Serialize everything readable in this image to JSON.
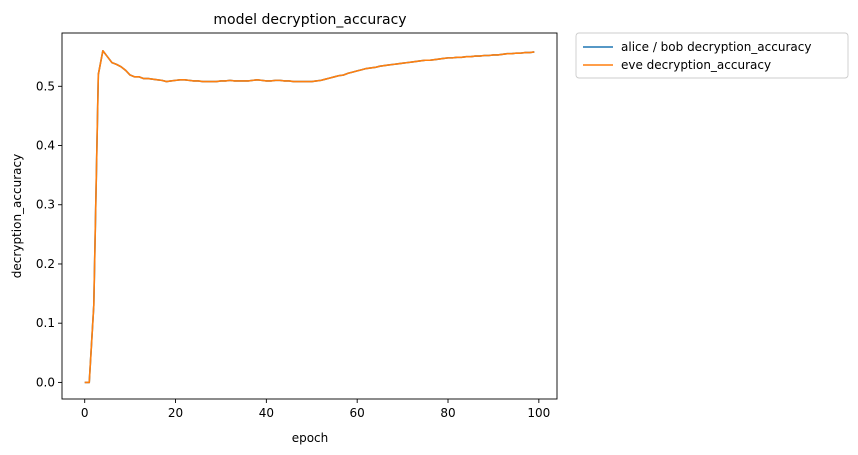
{
  "chart_data": {
    "type": "line",
    "title": "model decryption_accuracy",
    "xlabel": "epoch",
    "ylabel": "decryption_accuracy",
    "xlim": [
      -5,
      104
    ],
    "ylim": [
      -0.028,
      0.59
    ],
    "xticks": [
      0,
      20,
      40,
      60,
      80,
      100
    ],
    "yticks": [
      0.0,
      0.1,
      0.2,
      0.3,
      0.4,
      0.5
    ],
    "ytick_labels": [
      "0.0",
      "0.1",
      "0.2",
      "0.3",
      "0.4",
      "0.5"
    ],
    "grid": false,
    "legend_placement": "outside-upper-right",
    "series": [
      {
        "name": "alice / bob decryption_accuracy",
        "color": "#1f77b4",
        "x": [
          0,
          1,
          2,
          3,
          4,
          5,
          6,
          7,
          8,
          9,
          10,
          11,
          12,
          13,
          14,
          15,
          16,
          17,
          18,
          19,
          20,
          21,
          22,
          23,
          24,
          25,
          26,
          27,
          28,
          29,
          30,
          31,
          32,
          33,
          34,
          35,
          36,
          37,
          38,
          39,
          40,
          41,
          42,
          43,
          44,
          45,
          46,
          47,
          48,
          49,
          50,
          51,
          52,
          53,
          54,
          55,
          56,
          57,
          58,
          59,
          60,
          61,
          62,
          63,
          64,
          65,
          66,
          67,
          68,
          69,
          70,
          71,
          72,
          73,
          74,
          75,
          76,
          77,
          78,
          79,
          80,
          81,
          82,
          83,
          84,
          85,
          86,
          87,
          88,
          89,
          90,
          91,
          92,
          93,
          94,
          95,
          96,
          97,
          98,
          99
        ],
        "y": [
          0.0,
          0.0,
          0.13,
          0.52,
          0.56,
          0.55,
          0.54,
          0.537,
          0.533,
          0.527,
          0.519,
          0.516,
          0.516,
          0.513,
          0.513,
          0.512,
          0.511,
          0.51,
          0.508,
          0.509,
          0.51,
          0.511,
          0.511,
          0.51,
          0.509,
          0.509,
          0.508,
          0.508,
          0.508,
          0.508,
          0.509,
          0.509,
          0.51,
          0.509,
          0.509,
          0.509,
          0.509,
          0.51,
          0.511,
          0.51,
          0.509,
          0.509,
          0.51,
          0.51,
          0.509,
          0.509,
          0.508,
          0.508,
          0.508,
          0.508,
          0.508,
          0.509,
          0.51,
          0.512,
          0.514,
          0.516,
          0.518,
          0.519,
          0.522,
          0.524,
          0.526,
          0.528,
          0.53,
          0.531,
          0.532,
          0.534,
          0.535,
          0.536,
          0.537,
          0.538,
          0.539,
          0.54,
          0.541,
          0.542,
          0.543,
          0.544,
          0.544,
          0.545,
          0.546,
          0.547,
          0.548,
          0.548,
          0.549,
          0.549,
          0.55,
          0.55,
          0.551,
          0.551,
          0.552,
          0.552,
          0.553,
          0.553,
          0.554,
          0.555,
          0.555,
          0.556,
          0.556,
          0.557,
          0.557,
          0.558
        ]
      },
      {
        "name": "eve decryption_accuracy",
        "color": "#ff7f0e",
        "x": [
          0,
          1,
          2,
          3,
          4,
          5,
          6,
          7,
          8,
          9,
          10,
          11,
          12,
          13,
          14,
          15,
          16,
          17,
          18,
          19,
          20,
          21,
          22,
          23,
          24,
          25,
          26,
          27,
          28,
          29,
          30,
          31,
          32,
          33,
          34,
          35,
          36,
          37,
          38,
          39,
          40,
          41,
          42,
          43,
          44,
          45,
          46,
          47,
          48,
          49,
          50,
          51,
          52,
          53,
          54,
          55,
          56,
          57,
          58,
          59,
          60,
          61,
          62,
          63,
          64,
          65,
          66,
          67,
          68,
          69,
          70,
          71,
          72,
          73,
          74,
          75,
          76,
          77,
          78,
          79,
          80,
          81,
          82,
          83,
          84,
          85,
          86,
          87,
          88,
          89,
          90,
          91,
          92,
          93,
          94,
          95,
          96,
          97,
          98,
          99
        ],
        "y": [
          0.0,
          0.0,
          0.13,
          0.52,
          0.56,
          0.55,
          0.54,
          0.537,
          0.533,
          0.527,
          0.519,
          0.516,
          0.516,
          0.513,
          0.513,
          0.512,
          0.511,
          0.51,
          0.508,
          0.509,
          0.51,
          0.511,
          0.511,
          0.51,
          0.509,
          0.509,
          0.508,
          0.508,
          0.508,
          0.508,
          0.509,
          0.509,
          0.51,
          0.509,
          0.509,
          0.509,
          0.509,
          0.51,
          0.511,
          0.51,
          0.509,
          0.509,
          0.51,
          0.51,
          0.509,
          0.509,
          0.508,
          0.508,
          0.508,
          0.508,
          0.508,
          0.509,
          0.51,
          0.512,
          0.514,
          0.516,
          0.518,
          0.519,
          0.522,
          0.524,
          0.526,
          0.528,
          0.53,
          0.531,
          0.532,
          0.534,
          0.535,
          0.536,
          0.537,
          0.538,
          0.539,
          0.54,
          0.541,
          0.542,
          0.543,
          0.544,
          0.544,
          0.545,
          0.546,
          0.547,
          0.548,
          0.548,
          0.549,
          0.549,
          0.55,
          0.55,
          0.551,
          0.551,
          0.552,
          0.552,
          0.553,
          0.553,
          0.554,
          0.555,
          0.555,
          0.556,
          0.556,
          0.557,
          0.557,
          0.558
        ]
      }
    ]
  }
}
